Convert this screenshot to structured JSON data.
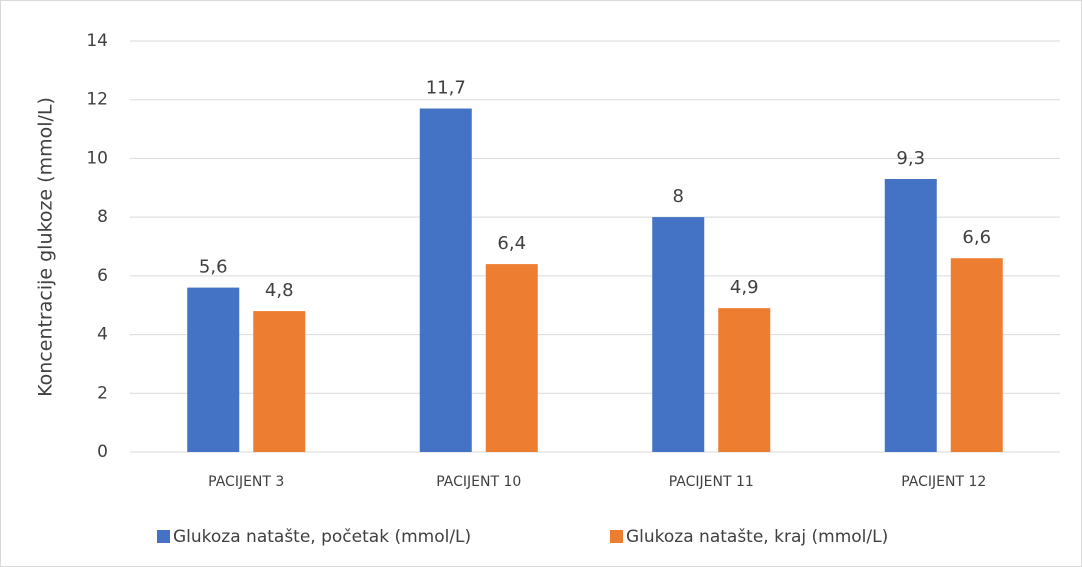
{
  "chart_data": {
    "type": "bar",
    "y_label": "Koncentracije glukoze (mmol/L)",
    "categories": [
      "PACIJENT 3",
      "PACIJENT 10",
      "PACIJENT 11",
      "PACIJENT 12"
    ],
    "series": [
      {
        "name": "Glukoza natašte, početak (mmol/L)",
        "color": "#4472c4",
        "values": [
          5.6,
          11.7,
          8,
          9.3
        ],
        "value_labels": [
          "5,6",
          "11,7",
          "8",
          "9,3"
        ]
      },
      {
        "name": "Glukoza natašte, kraj (mmol/L)",
        "color": "#ed7d31",
        "values": [
          4.8,
          6.4,
          4.9,
          6.6
        ],
        "value_labels": [
          "4,8",
          "6,4",
          "4,9",
          "6,6"
        ]
      }
    ],
    "ylim": [
      0,
      14
    ],
    "yticks": [
      0,
      2,
      4,
      6,
      8,
      10,
      12,
      14
    ],
    "grid": true
  }
}
